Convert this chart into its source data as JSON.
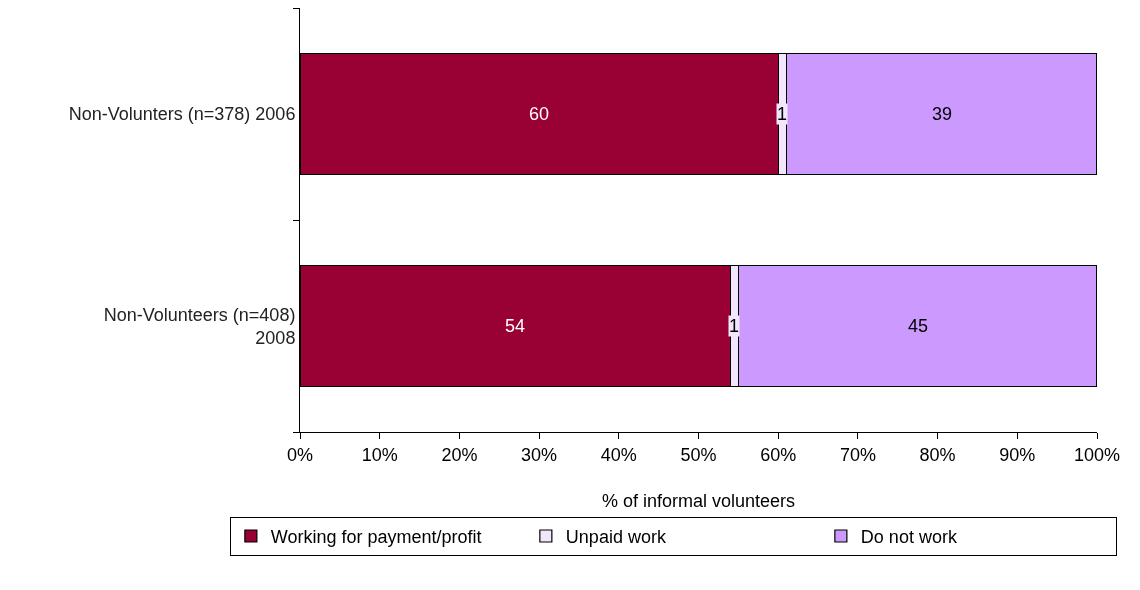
{
  "chart_data": {
    "type": "bar",
    "orientation": "horizontal",
    "stacked": true,
    "categories": [
      "Non-Volunters (n=378) 2006",
      "Non-Volunteers (n=408) 2008"
    ],
    "series": [
      {
        "name": "Working for payment/profit",
        "color": "#990033",
        "values": [
          60,
          54
        ]
      },
      {
        "name": "Unpaid work",
        "color": "#f2e6fa",
        "values": [
          1,
          1
        ]
      },
      {
        "name": "Do not work",
        "color": "#cc99ff",
        "values": [
          39,
          45
        ]
      }
    ],
    "xlabel": "% of informal volunteers",
    "xlim": [
      0,
      100
    ],
    "xticks": [
      {
        "value": 0,
        "label": "0%"
      },
      {
        "value": 10,
        "label": "10%"
      },
      {
        "value": 20,
        "label": "20%"
      },
      {
        "value": 30,
        "label": "30%"
      },
      {
        "value": 40,
        "label": "40%"
      },
      {
        "value": 50,
        "label": "50%"
      },
      {
        "value": 60,
        "label": "60%"
      },
      {
        "value": 70,
        "label": "70%"
      },
      {
        "value": 80,
        "label": "80%"
      },
      {
        "value": 90,
        "label": "90%"
      },
      {
        "value": 100,
        "label": "100%"
      }
    ],
    "data_labels": true,
    "legend": "bottom"
  }
}
